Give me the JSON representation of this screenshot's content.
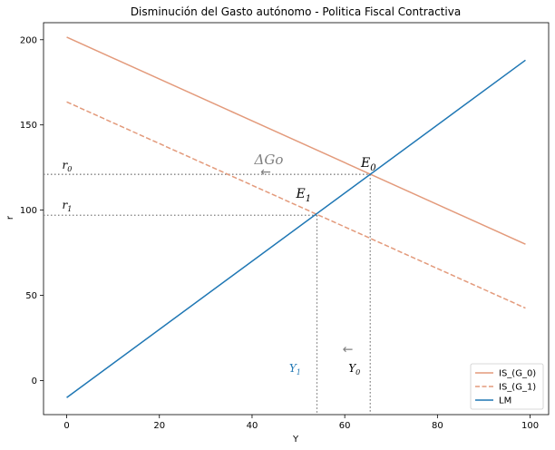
{
  "chart_data": {
    "type": "line",
    "title": "Disminución del Gasto autónomo - Politica Fiscal Contractiva",
    "xlabel": "Y",
    "ylabel": "r",
    "xlim": [
      -5,
      104
    ],
    "ylim": [
      -20,
      210
    ],
    "xticks": [
      0,
      20,
      40,
      60,
      80,
      100
    ],
    "yticks": [
      0,
      50,
      100,
      150,
      200
    ],
    "grid": false,
    "legend_position": "bottom-right",
    "series": [
      {
        "name": "IS_(G_0)",
        "color": "#e39a7b",
        "style": "solid",
        "x": [
          0,
          99
        ],
        "y": [
          201.5,
          80
        ]
      },
      {
        "name": "IS_(G_1)",
        "color": "#e39a7b",
        "style": "dashed",
        "x": [
          0,
          99
        ],
        "y": [
          163.5,
          42.5
        ]
      },
      {
        "name": "LM",
        "color": "#1f77b4",
        "style": "solid",
        "x": [
          0,
          99
        ],
        "y": [
          -10,
          188
        ]
      }
    ],
    "guides": {
      "color": "#7f7f7f",
      "r0": 121,
      "r1": 97,
      "Y0": 65.5,
      "Y1": 54
    },
    "annotations": {
      "r0_base": "r",
      "r0_sub": "0",
      "r1_base": "r",
      "r1_sub": "1",
      "E0_base": "E",
      "E0_sub": "0",
      "E1_base": "E",
      "E1_sub": "1",
      "Y0_base": "Y",
      "Y0_sub": "0",
      "Y1_base": "Y",
      "Y1_sub": "1",
      "delta_go": "ΔGo",
      "arrow_top": "←",
      "arrow_bottom": "←"
    }
  }
}
